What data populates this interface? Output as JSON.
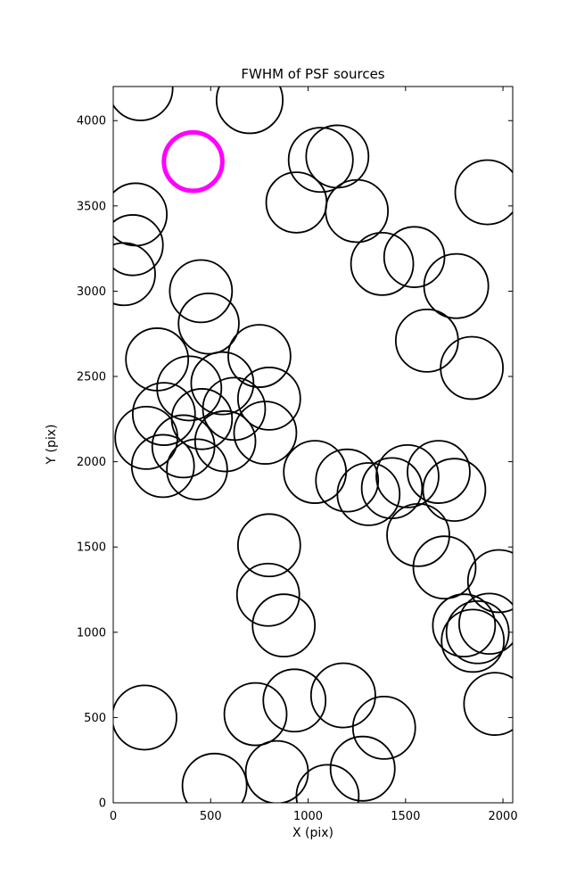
{
  "figure": {
    "title": "FWHM of PSF sources",
    "xlabel": "X (pix)",
    "ylabel": "Y (pix)"
  },
  "chart_data": {
    "type": "scatter",
    "title": "FWHM of PSF sources",
    "xlabel": "X (pix)",
    "ylabel": "Y (pix)",
    "xlim": [
      0,
      2050
    ],
    "ylim": [
      0,
      4200
    ],
    "xticks": [
      0,
      500,
      1000,
      1500,
      2000
    ],
    "yticks": [
      0,
      500,
      1000,
      1500,
      2000,
      2500,
      3000,
      3500,
      4000
    ],
    "grid": false,
    "legend": "none",
    "marker": "open-circle",
    "circle_color": "#000000",
    "highlight_color": "#ff00ff",
    "highlight_circle": {
      "x": 410,
      "y": 3760,
      "r": 150
    },
    "circles": [
      {
        "x": 140,
        "y": 4190,
        "r": 165
      },
      {
        "x": 700,
        "y": 4120,
        "r": 170
      },
      {
        "x": 1065,
        "y": 3770,
        "r": 165
      },
      {
        "x": 1150,
        "y": 3790,
        "r": 160
      },
      {
        "x": 940,
        "y": 3520,
        "r": 155
      },
      {
        "x": 1250,
        "y": 3470,
        "r": 160
      },
      {
        "x": 1920,
        "y": 3580,
        "r": 165
      },
      {
        "x": 115,
        "y": 3450,
        "r": 160
      },
      {
        "x": 100,
        "y": 3270,
        "r": 155
      },
      {
        "x": 55,
        "y": 3100,
        "r": 160
      },
      {
        "x": 1380,
        "y": 3160,
        "r": 160
      },
      {
        "x": 1545,
        "y": 3200,
        "r": 155
      },
      {
        "x": 1760,
        "y": 3030,
        "r": 165
      },
      {
        "x": 450,
        "y": 3000,
        "r": 160
      },
      {
        "x": 490,
        "y": 2810,
        "r": 155
      },
      {
        "x": 1610,
        "y": 2710,
        "r": 160
      },
      {
        "x": 225,
        "y": 2600,
        "r": 160
      },
      {
        "x": 750,
        "y": 2620,
        "r": 160
      },
      {
        "x": 1840,
        "y": 2550,
        "r": 160
      },
      {
        "x": 390,
        "y": 2430,
        "r": 165
      },
      {
        "x": 560,
        "y": 2460,
        "r": 160
      },
      {
        "x": 260,
        "y": 2280,
        "r": 160
      },
      {
        "x": 455,
        "y": 2250,
        "r": 155
      },
      {
        "x": 620,
        "y": 2310,
        "r": 160
      },
      {
        "x": 800,
        "y": 2370,
        "r": 160
      },
      {
        "x": 170,
        "y": 2140,
        "r": 160
      },
      {
        "x": 360,
        "y": 2090,
        "r": 160
      },
      {
        "x": 575,
        "y": 2120,
        "r": 155
      },
      {
        "x": 780,
        "y": 2170,
        "r": 160
      },
      {
        "x": 255,
        "y": 1975,
        "r": 160
      },
      {
        "x": 430,
        "y": 1955,
        "r": 155
      },
      {
        "x": 1035,
        "y": 1940,
        "r": 160
      },
      {
        "x": 1200,
        "y": 1890,
        "r": 160
      },
      {
        "x": 1310,
        "y": 1810,
        "r": 160
      },
      {
        "x": 1430,
        "y": 1845,
        "r": 155
      },
      {
        "x": 1510,
        "y": 1915,
        "r": 160
      },
      {
        "x": 1670,
        "y": 1940,
        "r": 160
      },
      {
        "x": 1750,
        "y": 1835,
        "r": 160
      },
      {
        "x": 800,
        "y": 1510,
        "r": 160
      },
      {
        "x": 1565,
        "y": 1570,
        "r": 160
      },
      {
        "x": 1700,
        "y": 1380,
        "r": 160
      },
      {
        "x": 1980,
        "y": 1300,
        "r": 160
      },
      {
        "x": 795,
        "y": 1220,
        "r": 160
      },
      {
        "x": 875,
        "y": 1040,
        "r": 160
      },
      {
        "x": 1800,
        "y": 1040,
        "r": 160
      },
      {
        "x": 1870,
        "y": 1000,
        "r": 160
      },
      {
        "x": 1930,
        "y": 1050,
        "r": 155
      },
      {
        "x": 1845,
        "y": 950,
        "r": 160
      },
      {
        "x": 160,
        "y": 500,
        "r": 165
      },
      {
        "x": 730,
        "y": 520,
        "r": 160
      },
      {
        "x": 930,
        "y": 600,
        "r": 160
      },
      {
        "x": 1180,
        "y": 630,
        "r": 165
      },
      {
        "x": 1960,
        "y": 580,
        "r": 160
      },
      {
        "x": 1390,
        "y": 440,
        "r": 160
      },
      {
        "x": 520,
        "y": 100,
        "r": 165
      },
      {
        "x": 840,
        "y": 180,
        "r": 160
      },
      {
        "x": 1280,
        "y": 200,
        "r": 165
      },
      {
        "x": 1100,
        "y": 40,
        "r": 160
      }
    ]
  }
}
